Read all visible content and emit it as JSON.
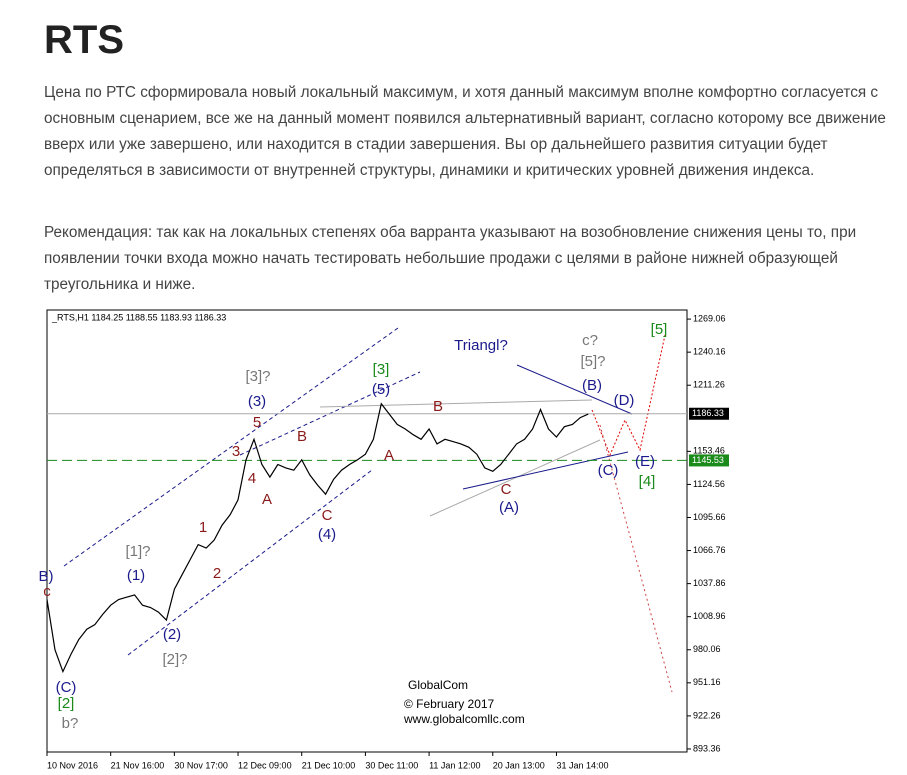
{
  "header": {
    "title": "RTS"
  },
  "paragraphs": [
    "Цена по РТС сформировала новый локальный максимум, и хотя данный максимум вполне комфортно согласуется с основным сценарием, все же на данный момент появился альтернативный вариант, согласно которому все движение вверх или уже завершено, или находится в стадии завершения. Вы ор дальнейшего развития ситуации будет определяться в зависимости от внутренней структуры, динамики и критических уровней движения индекса.",
    "Рекомендация:  так как на локальных степенях оба варранта указывают на возобновление снижения цены то, при появлении точки входа можно начать тестировать небольшие продажи с целями в районе нижней образующей треугольника и ниже."
  ],
  "chart": {
    "type": "line",
    "header": "_RTS,H1  1184.25 1188.55 1183.93 1186.33",
    "color": "#000000",
    "categories": [
      "10 Nov 2016",
      null,
      null,
      null,
      null,
      null,
      null,
      null,
      "21 Nov 16:00",
      null,
      null,
      null,
      null,
      null,
      null,
      null,
      "30 Nov 17:00",
      null,
      null,
      null,
      null,
      null,
      null,
      null,
      "12 Dec 09:00",
      null,
      null,
      null,
      null,
      null,
      null,
      null,
      "21 Dec 10:00",
      null,
      null,
      null,
      null,
      null,
      null,
      null,
      "30 Dec 11:00",
      null,
      null,
      null,
      null,
      null,
      null,
      null,
      "11 Jan 12:00",
      null,
      null,
      null,
      null,
      null,
      null,
      null,
      "20 Jan 13:00",
      null,
      null,
      null,
      null,
      null,
      null,
      null,
      "31 Jan 14:00",
      null,
      null,
      null,
      null
    ],
    "values": [
      1024,
      980,
      961,
      976,
      989,
      998,
      1002,
      1011,
      1019,
      1024,
      1026,
      1028,
      1019,
      1017,
      1013,
      1006,
      1033,
      1046,
      1059,
      1072,
      1069,
      1076,
      1089,
      1098,
      1111,
      1146,
      1164,
      1142,
      1131,
      1142,
      1139,
      1137,
      1146,
      1133,
      1124,
      1116,
      1129,
      1137,
      1142,
      1146,
      1151,
      1164,
      1195,
      1186,
      1177,
      1173,
      1168,
      1164,
      1173,
      1160,
      1164,
      1162,
      1160,
      1157,
      1151,
      1139,
      1136,
      1142,
      1151,
      1160,
      1164,
      1173,
      1190,
      1173,
      1166,
      1175,
      1177,
      1183,
      1186
    ],
    "ylim": [
      890.7,
      1277
    ],
    "yticks": [
      893.36,
      922.26,
      951.16,
      980.06,
      1008.96,
      1037.86,
      1066.76,
      1095.66,
      1124.56,
      1153.46,
      1211.26,
      1240.16,
      1269.06
    ],
    "levels": [
      {
        "value": 1186.33,
        "color": "#000000"
      },
      {
        "value": 1145.53,
        "color": "#1a8a1a"
      }
    ],
    "annotations": [
      {
        "text": "B)",
        "color": "#1a1a8c"
      },
      {
        "text": "c",
        "color": "#8b1a1a"
      },
      {
        "text": "(C)",
        "color": "#1a1a8c"
      },
      {
        "text": "[2]",
        "color": "#1a8a1a"
      },
      {
        "text": "b?",
        "color": "#777777"
      },
      {
        "text": "(1)",
        "color": "#1a1a8c"
      },
      {
        "text": "[1]?",
        "color": "#777777"
      },
      {
        "text": "(2)",
        "color": "#1a1a8c"
      },
      {
        "text": "[2]?",
        "color": "#777777"
      },
      {
        "text": "1",
        "color": "#8b1a1a"
      },
      {
        "text": "2",
        "color": "#8b1a1a"
      },
      {
        "text": "3",
        "color": "#8b1a1a"
      },
      {
        "text": "4",
        "color": "#8b1a1a"
      },
      {
        "text": "5",
        "color": "#8b1a1a"
      },
      {
        "text": "A",
        "color": "#8b1a1a"
      },
      {
        "text": "(3)",
        "color": "#1a1a8c"
      },
      {
        "text": "[3]?",
        "color": "#777777"
      },
      {
        "text": "B",
        "color": "#8b1a1a"
      },
      {
        "text": "C",
        "color": "#8b1a1a"
      },
      {
        "text": "(4)",
        "color": "#1a1a8c"
      },
      {
        "text": "[3]",
        "color": "#1a8a1a"
      },
      {
        "text": "(5)",
        "color": "#1a1a8c"
      },
      {
        "text": "A",
        "color": "#8b1a1a"
      },
      {
        "text": "B",
        "color": "#8b1a1a"
      },
      {
        "text": "Triangl?",
        "color": "#1a1a8c"
      },
      {
        "text": "c?",
        "color": "#777777"
      },
      {
        "text": "[5]?",
        "color": "#777777"
      },
      {
        "text": "(B)",
        "color": "#1a1a8c"
      },
      {
        "text": "(D)",
        "color": "#1a1a8c"
      },
      {
        "text": "(C)",
        "color": "#1a1a8c"
      },
      {
        "text": "(E)",
        "color": "#1a1a8c"
      },
      {
        "text": "[4]",
        "color": "#1a8a1a"
      },
      {
        "text": "[5]",
        "color": "#1a8a1a"
      },
      {
        "text": "C",
        "color": "#8b1a1a"
      },
      {
        "text": "(A)",
        "color": "#1a1a8c"
      }
    ],
    "watermark": [
      "GlobalCom",
      "© February 2017",
      "www.globalcomllc.com"
    ]
  }
}
